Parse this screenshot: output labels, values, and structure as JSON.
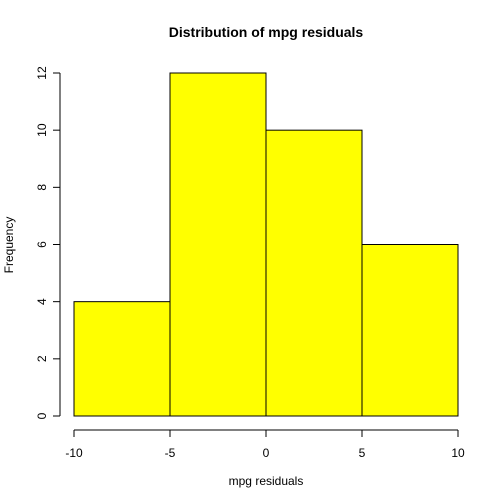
{
  "chart_data": {
    "type": "bar",
    "title": "Distribution of mpg residuals",
    "xlabel": "mpg residuals",
    "ylabel": "Frequency",
    "bins": [
      {
        "from": -10,
        "to": -5,
        "count": 4
      },
      {
        "from": -5,
        "to": 0,
        "count": 12
      },
      {
        "from": 0,
        "to": 5,
        "count": 10
      },
      {
        "from": 5,
        "to": 10,
        "count": 6
      }
    ],
    "x_ticks": [
      -10,
      -5,
      0,
      5,
      10
    ],
    "y_ticks": [
      0,
      2,
      4,
      6,
      8,
      10,
      12
    ],
    "xlim": [
      -10,
      10
    ],
    "ylim": [
      0,
      12
    ],
    "grid": false,
    "bar_color": "#ffff00",
    "border_color": "#000000"
  }
}
